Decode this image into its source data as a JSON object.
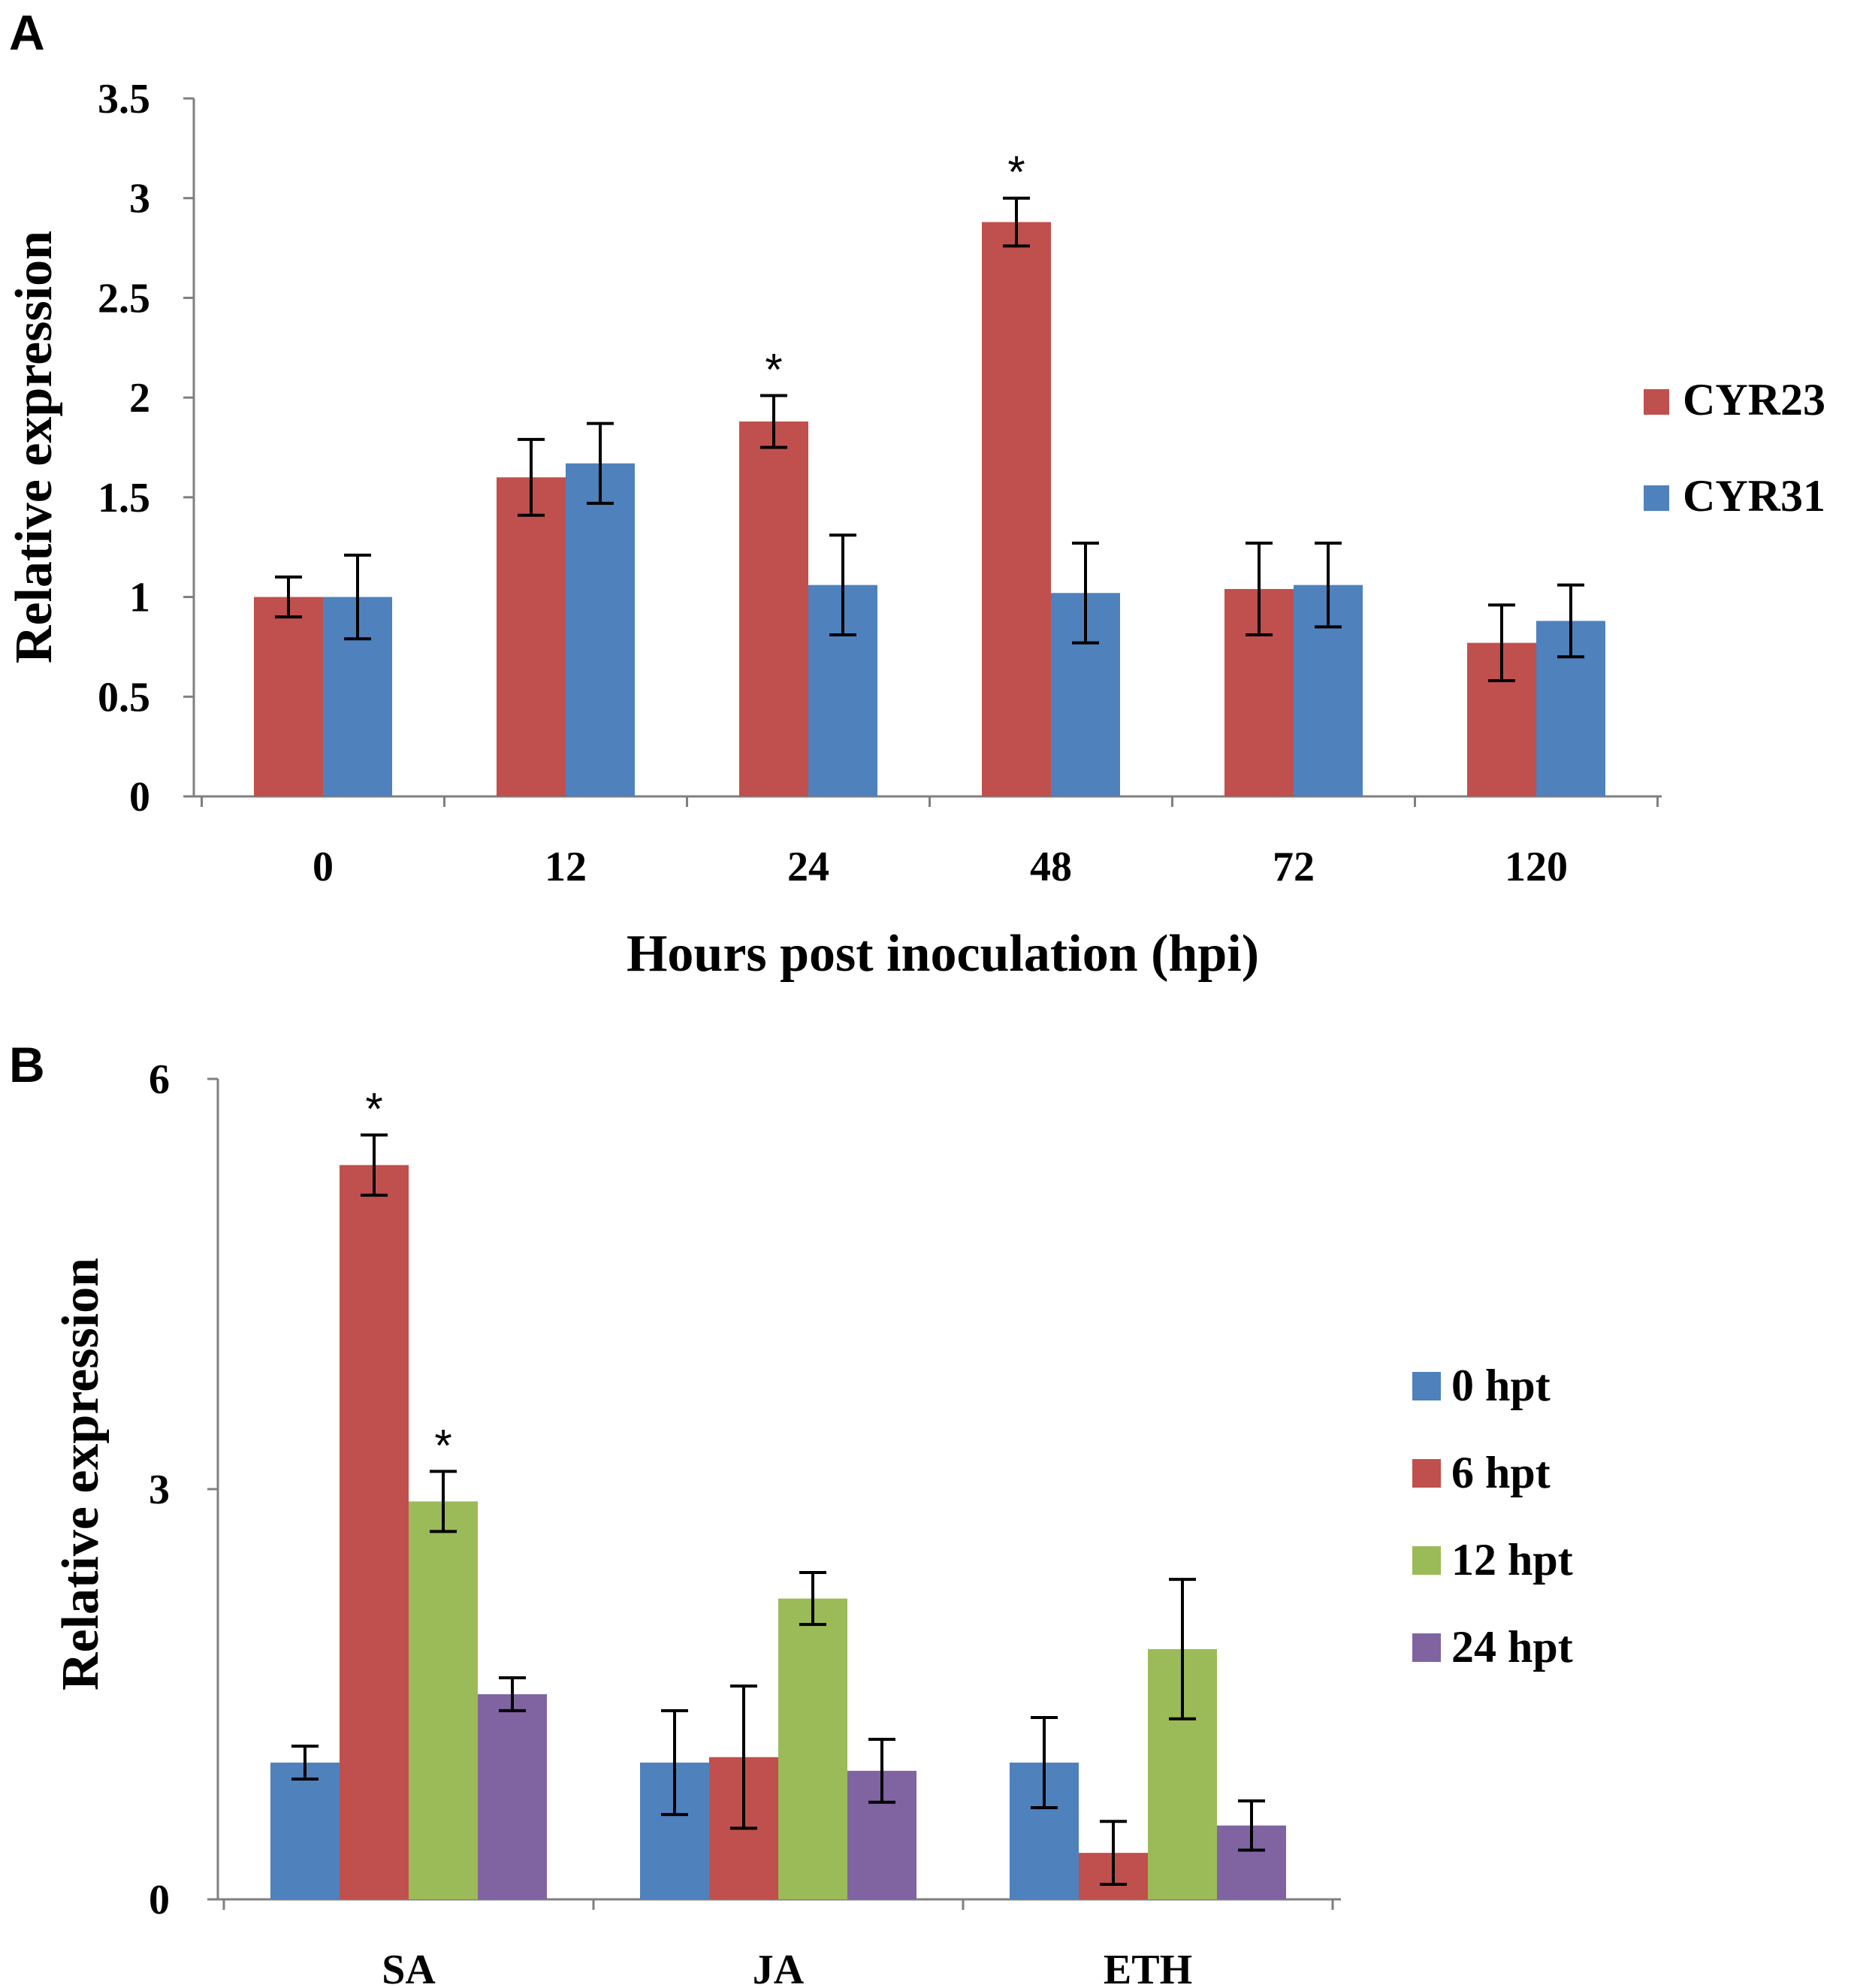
{
  "chart_data": [
    {
      "panel": "A",
      "type": "bar",
      "title": "",
      "xlabel": "Hours post inoculation  (hpi)",
      "ylabel": "Relative expression",
      "ylim": [
        0,
        3.5
      ],
      "yticks": [
        "0",
        "0.5",
        "1",
        "1.5",
        "2",
        "2.5",
        "3",
        "3.5"
      ],
      "categories": [
        "0",
        "12",
        "24",
        "48",
        "72",
        "120"
      ],
      "series": [
        {
          "name": "CYR23",
          "color": "#c0504d",
          "values": [
            1.0,
            1.6,
            1.88,
            2.88,
            1.04,
            0.77
          ],
          "errors": [
            0.1,
            0.19,
            0.13,
            0.12,
            0.23,
            0.19
          ]
        },
        {
          "name": "CYR31",
          "color": "#4f81bd",
          "values": [
            1.0,
            1.67,
            1.06,
            1.02,
            1.06,
            0.88
          ],
          "errors": [
            0.21,
            0.2,
            0.25,
            0.25,
            0.21,
            0.18
          ]
        }
      ],
      "significance": [
        {
          "category": "24",
          "series": "CYR23",
          "mark": "*"
        },
        {
          "category": "48",
          "series": "CYR23",
          "mark": "*"
        }
      ],
      "legend_position": "right"
    },
    {
      "panel": "B",
      "type": "bar",
      "title": "",
      "xlabel": "",
      "ylabel": "Relative expression",
      "ylim": [
        0,
        6
      ],
      "yticks": [
        "0",
        "3",
        "6"
      ],
      "categories": [
        "SA",
        "JA",
        "ETH"
      ],
      "series": [
        {
          "name": "0 hpt",
          "color": "#4f81bd",
          "values": [
            1.0,
            1.0,
            1.0
          ],
          "errors": [
            0.12,
            0.38,
            0.33
          ]
        },
        {
          "name": "6 hpt",
          "color": "#c0504d",
          "values": [
            5.37,
            1.04,
            0.34
          ],
          "errors": [
            0.22,
            0.52,
            0.23
          ]
        },
        {
          "name": "12 hpt",
          "color": "#9bbb59",
          "values": [
            2.91,
            2.2,
            1.83
          ],
          "errors": [
            0.22,
            0.19,
            0.51
          ]
        },
        {
          "name": "24 hpt",
          "color": "#8064a2",
          "values": [
            1.5,
            0.94,
            0.54
          ],
          "errors": [
            0.12,
            0.23,
            0.18
          ]
        }
      ],
      "significance": [
        {
          "category": "SA",
          "series": "6 hpt",
          "mark": "*"
        },
        {
          "category": "SA",
          "series": "12 hpt",
          "mark": "*"
        }
      ],
      "legend_position": "right"
    }
  ]
}
